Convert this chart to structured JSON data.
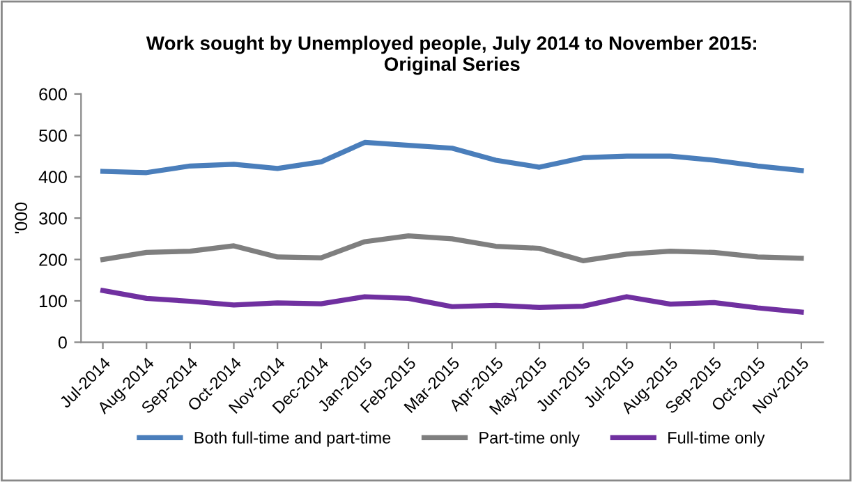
{
  "chart_data": {
    "type": "line",
    "title": "Work sought by Unemployed people, July 2014 to November 2015:\nOriginal Series",
    "ylabel": "'000",
    "categories": [
      "Jul-2014",
      "Aug-2014",
      "Sep-2014",
      "Oct-2014",
      "Nov-2014",
      "Dec-2014",
      "Jan-2015",
      "Feb-2015",
      "Mar-2015",
      "Apr-2015",
      "May-2015",
      "Jun-2015",
      "Jul-2015",
      "Aug-2015",
      "Sep-2015",
      "Oct-2015",
      "Nov-2015"
    ],
    "series": [
      {
        "name": "Both full-time and part-time",
        "color": "#4a7ebb",
        "values": [
          413,
          410,
          426,
          430,
          420,
          436,
          483,
          476,
          469,
          440,
          423,
          446,
          450,
          450,
          440,
          426,
          415
        ]
      },
      {
        "name": "Part-time only",
        "color": "#7f7f7f",
        "values": [
          200,
          217,
          220,
          233,
          206,
          204,
          243,
          257,
          250,
          232,
          227,
          197,
          213,
          220,
          217,
          206,
          203
        ]
      },
      {
        "name": "Full-time only",
        "color": "#7030a0",
        "values": [
          125,
          106,
          99,
          90,
          95,
          93,
          110,
          106,
          86,
          89,
          84,
          87,
          110,
          92,
          96,
          83,
          73
        ]
      }
    ],
    "ylim": [
      0,
      600
    ],
    "yticks": [
      0,
      100,
      200,
      300,
      400,
      500,
      600
    ],
    "grid": false,
    "legend": "bottom",
    "marker": "none",
    "line_style": "solid"
  }
}
